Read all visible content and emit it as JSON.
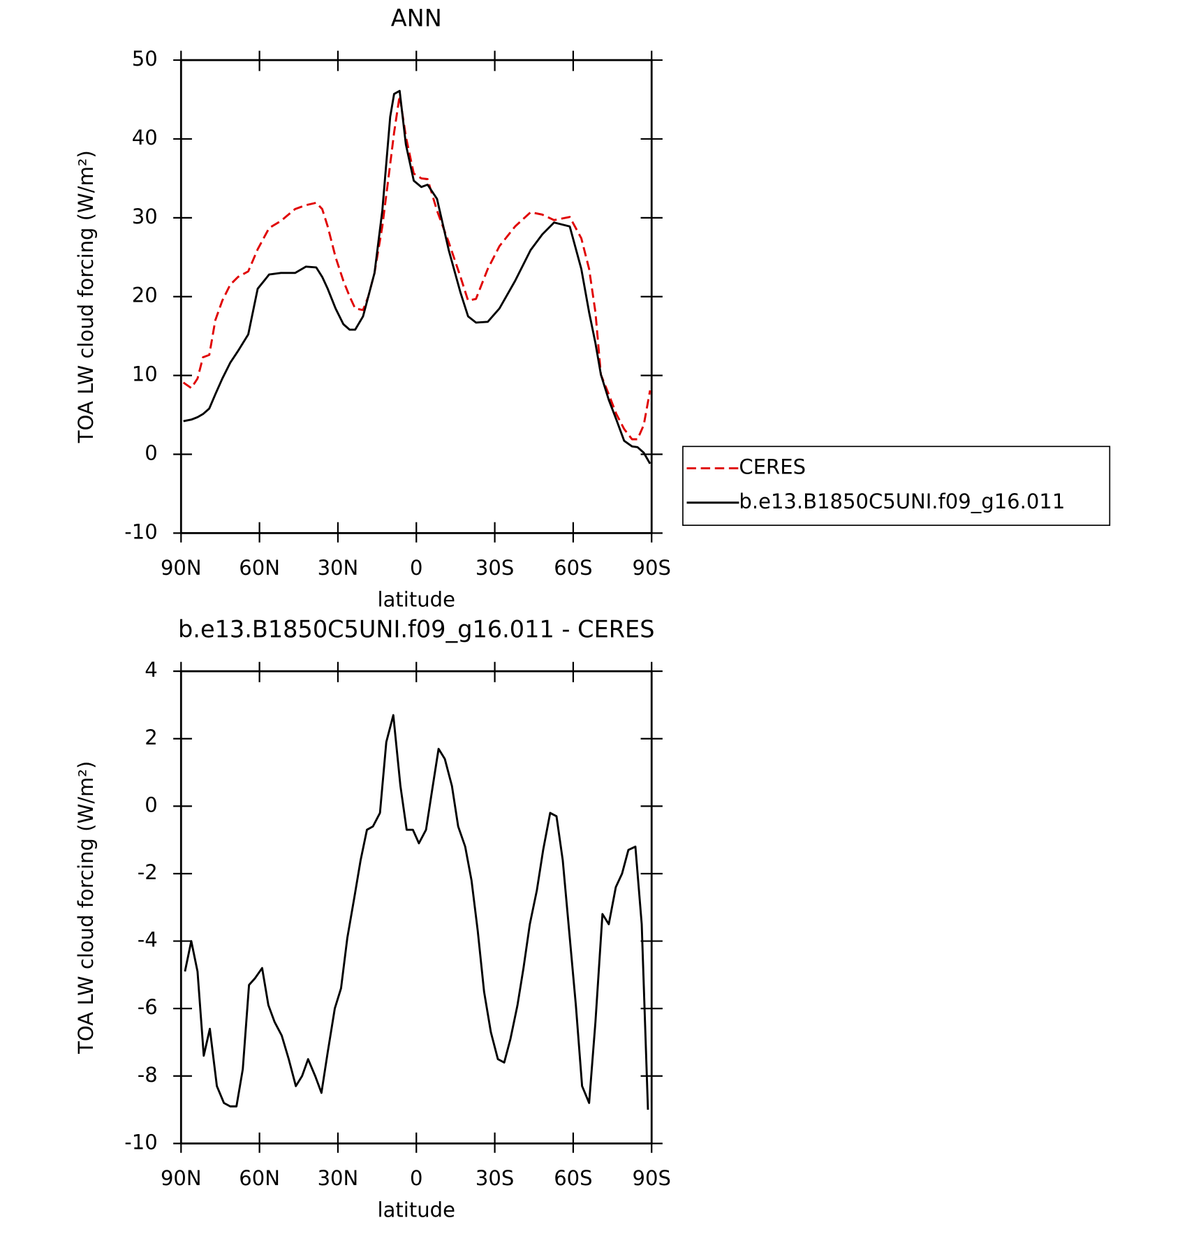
{
  "chart_data": [
    {
      "type": "line",
      "title": "ANN",
      "xlabel": "latitude",
      "ylabel": "TOA LW cloud forcing (W/m²)",
      "xlim": [
        90,
        -90
      ],
      "xticks": [
        {
          "value": 90,
          "label": "90N"
        },
        {
          "value": 60,
          "label": "60N"
        },
        {
          "value": 30,
          "label": "30N"
        },
        0,
        {
          "value": -30,
          "label": "30S"
        },
        {
          "value": -60,
          "label": "60S"
        },
        {
          "value": -90,
          "label": "90S"
        }
      ],
      "ylim": [
        -10,
        50
      ],
      "yticks": [
        -10,
        0,
        10,
        20,
        30,
        40,
        50
      ],
      "legend": "outside-right",
      "x": [
        89.1,
        86.1,
        83.7,
        81.6,
        79.2,
        76.9,
        74.2,
        71.2,
        68.2,
        64.3,
        60.7,
        56.3,
        51.8,
        46.4,
        42.2,
        38.3,
        36,
        33.9,
        30.9,
        27.9,
        25.5,
        23.4,
        20.4,
        18.4,
        16,
        13,
        10,
        8.5,
        6.4,
        4,
        1,
        -1.9,
        -4.3,
        -7.9,
        -12.4,
        -16.9,
        -19.8,
        -22.8,
        -27.3,
        -31.8,
        -37.8,
        -43.7,
        -48.2,
        -52.7,
        -58.7,
        -63.1,
        -66.1,
        -68.5,
        -70.6,
        -73.6,
        -76.5,
        -79.5,
        -82.5,
        -84.6,
        -87,
        -89.4
      ],
      "series": [
        {
          "name": "CERES",
          "color": "#e00000",
          "dashed": true,
          "values": [
            9.1,
            8.4,
            9.6,
            12.3,
            12.6,
            17,
            19.5,
            21.5,
            22.5,
            23.2,
            26,
            28.7,
            29.6,
            31.1,
            31.6,
            31.9,
            31.1,
            28.9,
            25,
            22,
            20,
            18.5,
            18.3,
            20,
            23,
            28.9,
            36.8,
            40.8,
            45.5,
            40.3,
            35.6,
            35,
            34.9,
            30.9,
            26.9,
            22.5,
            19.5,
            19.7,
            23.5,
            26.4,
            28.9,
            30.7,
            30.4,
            29.7,
            30.1,
            27.4,
            23.5,
            18,
            10.1,
            7.6,
            5.1,
            3.2,
            1.9,
            1.9,
            3.7,
            8.1
          ]
        },
        {
          "name": "b.e13.B1850C5UNI.f09_g16.011",
          "color": "#000000",
          "dashed": false,
          "values": [
            4.2,
            4.4,
            4.7,
            5.1,
            5.8,
            7.6,
            9.6,
            11.6,
            13.1,
            15.2,
            21,
            22.8,
            23,
            23,
            23.8,
            23.7,
            22.5,
            21,
            18.5,
            16.5,
            15.8,
            15.8,
            17.5,
            20,
            23,
            30.9,
            42.8,
            45.7,
            46.1,
            39.3,
            34.7,
            33.9,
            34.2,
            32.4,
            25.9,
            20.5,
            17.5,
            16.7,
            16.8,
            18.5,
            22,
            25.9,
            27.9,
            29.4,
            28.9,
            23.5,
            18,
            14.1,
            10.1,
            6.9,
            4.4,
            1.7,
            1,
            0.9,
            0.2,
            -1.2
          ]
        }
      ]
    },
    {
      "type": "line",
      "title": "b.e13.B1850C5UNI.f09_g16.011 - CERES",
      "xlabel": "latitude",
      "ylabel": "TOA LW cloud forcing (W/m²)",
      "xlim": [
        90,
        -90
      ],
      "xticks": [
        {
          "value": 90,
          "label": "90N"
        },
        {
          "value": 60,
          "label": "60N"
        },
        {
          "value": 30,
          "label": "30N"
        },
        0,
        {
          "value": -30,
          "label": "30S"
        },
        {
          "value": -60,
          "label": "60S"
        },
        {
          "value": -90,
          "label": "90S"
        }
      ],
      "ylim": [
        -10,
        4
      ],
      "yticks": [
        -10,
        -8,
        -6,
        -4,
        -2,
        0,
        2,
        4
      ],
      "x": [
        88.5,
        86.1,
        83.7,
        81.3,
        79,
        76.3,
        73.6,
        71.2,
        68.8,
        66.4,
        64,
        61.7,
        59,
        56.6,
        54.2,
        51.5,
        48.8,
        46.1,
        43.7,
        41.4,
        38.7,
        36.3,
        33.9,
        31.2,
        28.8,
        26.4,
        23.7,
        21.3,
        18.9,
        16.6,
        13.9,
        11.5,
        8.8,
        6.1,
        3.7,
        1.3,
        -1,
        -3.7,
        -6.1,
        -8.5,
        -10.9,
        -13.6,
        -16,
        -18.7,
        -21.1,
        -23.5,
        -25.9,
        -28.5,
        -31.2,
        -33.6,
        -36,
        -38.7,
        -41,
        -43.4,
        -46.1,
        -48.5,
        -51.2,
        -53.6,
        -56,
        -58.7,
        -61,
        -63.4,
        -66.1,
        -68.5,
        -71.2,
        -73.6,
        -76.3,
        -78.7,
        -81.1,
        -83.8,
        -86.2,
        -88.6
      ],
      "series": [
        {
          "color": "#000000",
          "dashed": false,
          "values": [
            -4.9,
            -4,
            -4.9,
            -7.4,
            -6.6,
            -8.3,
            -8.8,
            -8.9,
            -8.9,
            -7.8,
            -5.3,
            -5.1,
            -4.8,
            -5.9,
            -6.4,
            -6.8,
            -7.5,
            -8.3,
            -8,
            -7.5,
            -8,
            -8.5,
            -7.3,
            -6,
            -5.4,
            -3.9,
            -2.7,
            -1.6,
            -0.7,
            -0.6,
            -0.2,
            1.9,
            2.7,
            0.6,
            -0.7,
            -0.7,
            -1.1,
            -0.7,
            0.5,
            1.7,
            1.4,
            0.6,
            -0.6,
            -1.2,
            -2.2,
            -3.7,
            -5.5,
            -6.7,
            -7.5,
            -7.6,
            -6.9,
            -5.9,
            -4.8,
            -3.5,
            -2.5,
            -1.3,
            -0.2,
            -0.3,
            -1.6,
            -3.9,
            -5.9,
            -8.3,
            -8.8,
            -6.4,
            -3.2,
            -3.5,
            -2.4,
            -2,
            -1.3,
            -1.2,
            -3.5,
            -9
          ]
        }
      ]
    }
  ]
}
